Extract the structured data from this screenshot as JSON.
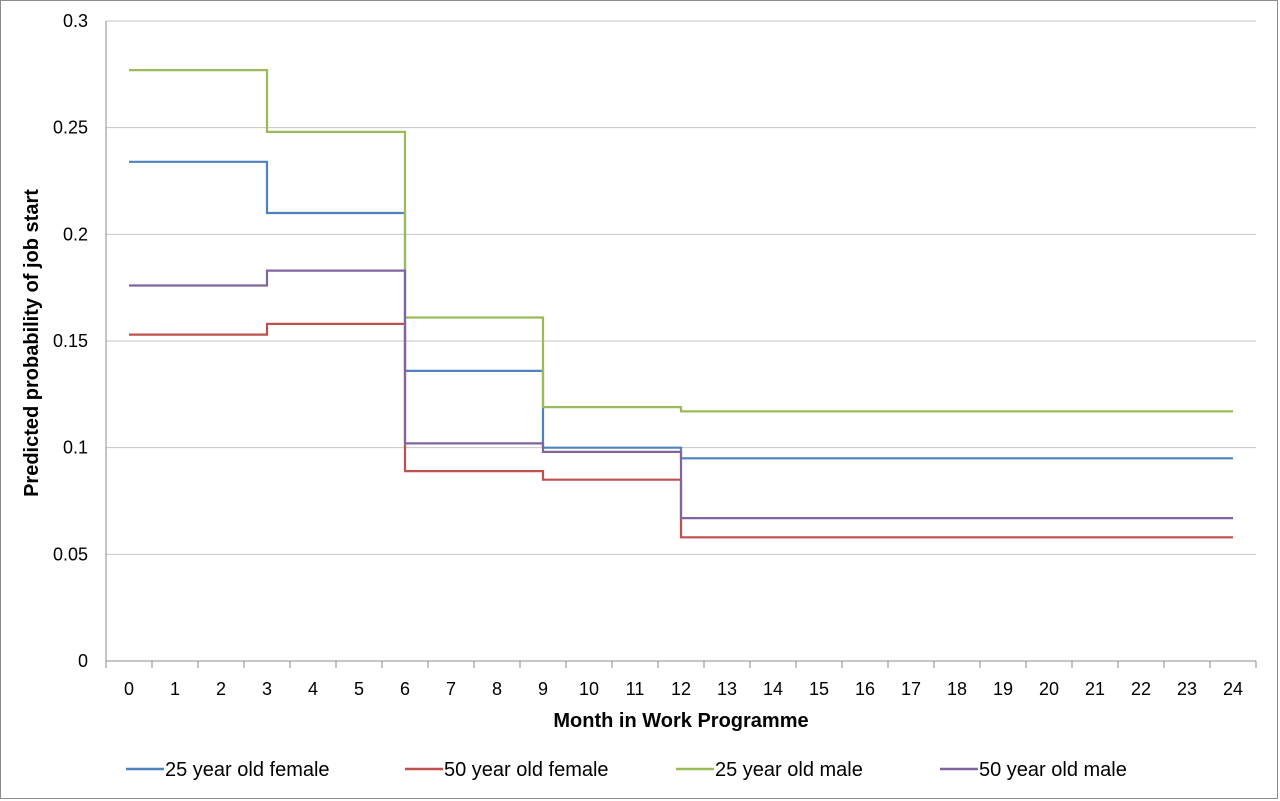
{
  "chart_data": {
    "type": "line",
    "step": true,
    "title": "",
    "xlabel": "Month in Work Programme",
    "ylabel": "Predicted probability of job start",
    "x_ticks": [
      "0",
      "1",
      "2",
      "3",
      "4",
      "5",
      "6",
      "7",
      "8",
      "9",
      "10",
      "11",
      "12",
      "13",
      "14",
      "15",
      "16",
      "17",
      "18",
      "19",
      "20",
      "21",
      "22",
      "23",
      "24"
    ],
    "y_ticks": [
      "0",
      "0.05",
      "0.1",
      "0.15",
      "0.2",
      "0.25",
      "0.3"
    ],
    "y_tick_values": [
      0,
      0.05,
      0.1,
      0.15,
      0.2,
      0.25,
      0.3
    ],
    "xlim": [
      0,
      24
    ],
    "ylim": [
      0,
      0.3
    ],
    "grid": "horizontal",
    "legend_position": "bottom",
    "series": [
      {
        "name": "25 year old female",
        "color": "#4f81bd",
        "steps": [
          {
            "from": 0,
            "to": 3,
            "value": 0.234
          },
          {
            "from": 3,
            "to": 6,
            "value": 0.21
          },
          {
            "from": 6,
            "to": 9,
            "value": 0.136
          },
          {
            "from": 9,
            "to": 12,
            "value": 0.1
          },
          {
            "from": 12,
            "to": 24,
            "value": 0.095
          }
        ]
      },
      {
        "name": "50 year old female",
        "color": "#c0504d",
        "steps": [
          {
            "from": 0,
            "to": 3,
            "value": 0.153
          },
          {
            "from": 3,
            "to": 6,
            "value": 0.158
          },
          {
            "from": 6,
            "to": 9,
            "value": 0.089
          },
          {
            "from": 9,
            "to": 12,
            "value": 0.085
          },
          {
            "from": 12,
            "to": 24,
            "value": 0.058
          }
        ]
      },
      {
        "name": "25 year old male",
        "color": "#9bbb59",
        "steps": [
          {
            "from": 0,
            "to": 3,
            "value": 0.277
          },
          {
            "from": 3,
            "to": 6,
            "value": 0.248
          },
          {
            "from": 6,
            "to": 9,
            "value": 0.161
          },
          {
            "from": 9,
            "to": 12,
            "value": 0.119
          },
          {
            "from": 12,
            "to": 24,
            "value": 0.117
          }
        ]
      },
      {
        "name": "50 year old male",
        "color": "#8064a2",
        "steps": [
          {
            "from": 0,
            "to": 3,
            "value": 0.176
          },
          {
            "from": 3,
            "to": 6,
            "value": 0.183
          },
          {
            "from": 6,
            "to": 9,
            "value": 0.102
          },
          {
            "from": 9,
            "to": 12,
            "value": 0.098
          },
          {
            "from": 12,
            "to": 24,
            "value": 0.067
          }
        ]
      }
    ]
  }
}
